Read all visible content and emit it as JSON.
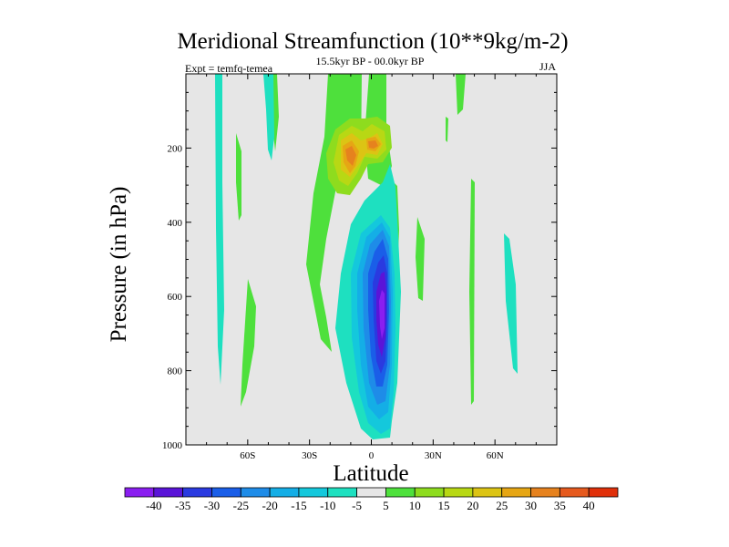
{
  "chart_data": {
    "type": "contour",
    "title": "Meridional Streamfunction (10**9kg/m-2)",
    "subtitle": "15.5kyr BP - 00.0kyr BP",
    "left_label": "Expt = temfq-temea",
    "right_label": "JJA",
    "xlabel": "Latitude",
    "ylabel": "Pressure (in hPa)",
    "xlim": [
      -90,
      90
    ],
    "ylim": [
      0,
      1000
    ],
    "x_ticks": [
      -60,
      -30,
      0,
      30,
      60
    ],
    "x_tick_labels": [
      "60S",
      "30S",
      "0",
      "30N",
      "60N"
    ],
    "y_ticks": [
      200,
      400,
      600,
      800,
      1000
    ],
    "y_tick_labels": [
      "200",
      "400",
      "600",
      "800",
      "1000"
    ],
    "levels": [
      -40,
      -35,
      -30,
      -25,
      -20,
      -15,
      -10,
      -5,
      5,
      10,
      15,
      20,
      25,
      30,
      35,
      40
    ],
    "level_labels": [
      "-40",
      "-35",
      "-30",
      "-25",
      "-20",
      "-15",
      "-10",
      "-5",
      "5",
      "10",
      "15",
      "20",
      "25",
      "30",
      "35",
      "40"
    ],
    "colors": [
      "#8a1ef0",
      "#5a14d8",
      "#2a3ae0",
      "#1a5ee8",
      "#1e8ce8",
      "#14aee6",
      "#14c8dc",
      "#1ee0c0",
      "#e6e6e6",
      "#4ee03c",
      "#8edc1e",
      "#b8d814",
      "#dcc414",
      "#e6a614",
      "#e6821e",
      "#e65a1e",
      "#e0300a"
    ],
    "features": [
      {
        "name": "southern cell",
        "lat": 5,
        "p_min": 250,
        "p_max": 980,
        "min_value": -40
      },
      {
        "name": "upper north lobe",
        "lat": 0,
        "p": 180,
        "max_value": 30
      },
      {
        "name": "upper south lobe",
        "lat": -12,
        "p": 200,
        "max_value": 25
      }
    ]
  }
}
